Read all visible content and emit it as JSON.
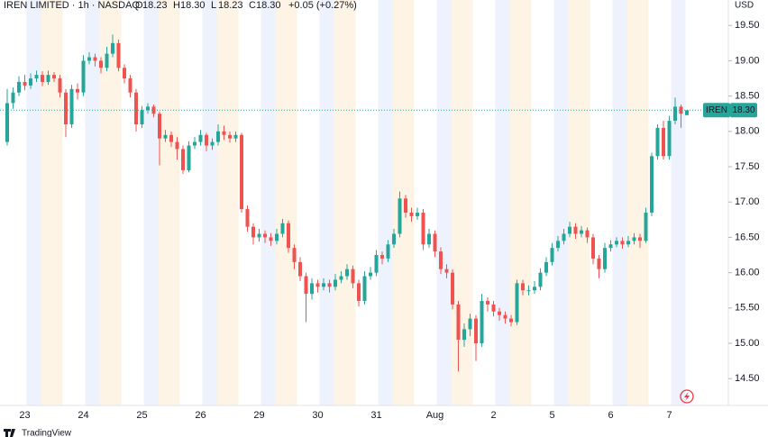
{
  "chart_data": {
    "type": "candlestick",
    "header": {
      "symbol": "IREN LIMITED · 1h · NASDAQ",
      "ohlc_labels": [
        "O",
        "H",
        "L",
        "C"
      ],
      "ohlc_values": [
        "18.23",
        "18.30",
        "18.23",
        "18.30"
      ],
      "change": "+0.05 (+0.27%)"
    },
    "currency": "USD",
    "symbol_tag": "IREN",
    "last_price": {
      "value": 18.3,
      "label": "18.30"
    },
    "brand": "TradingView",
    "up_color": "#26a69a",
    "down_color": "#ef5350",
    "ylim": [
      14.12,
      19.86
    ],
    "yticks": [
      {
        "value": 14.5,
        "label": "14.50"
      },
      {
        "value": 15,
        "label": "15.00"
      },
      {
        "value": 15.5,
        "label": "15.50"
      },
      {
        "value": 16,
        "label": "16.00"
      },
      {
        "value": 16.5,
        "label": "16.50"
      },
      {
        "value": 17,
        "label": "17.00"
      },
      {
        "value": 17.5,
        "label": "17.50"
      },
      {
        "value": 18,
        "label": "18.00"
      },
      {
        "value": 18.5,
        "label": "18.50"
      },
      {
        "value": 19,
        "label": "19.00"
      },
      {
        "value": 19.5,
        "label": "19.50"
      }
    ],
    "categories": [
      null,
      null,
      null,
      "23",
      null,
      null,
      null,
      null,
      null,
      null,
      null,
      null,
      null,
      "24",
      null,
      null,
      null,
      null,
      null,
      null,
      null,
      null,
      null,
      "25",
      null,
      null,
      null,
      null,
      null,
      null,
      null,
      null,
      null,
      "26",
      null,
      null,
      null,
      null,
      null,
      null,
      null,
      null,
      null,
      "29",
      null,
      null,
      null,
      null,
      null,
      null,
      null,
      null,
      null,
      "30",
      null,
      null,
      null,
      null,
      null,
      null,
      null,
      null,
      null,
      "31",
      null,
      null,
      null,
      null,
      null,
      null,
      null,
      null,
      null,
      "Aug",
      null,
      null,
      null,
      null,
      null,
      null,
      null,
      null,
      null,
      "2",
      null,
      null,
      null,
      null,
      null,
      null,
      null,
      null,
      null,
      "5",
      null,
      null,
      null,
      null,
      null,
      null,
      null,
      null,
      null,
      "6",
      null,
      null,
      null,
      null,
      null,
      null,
      null,
      null,
      null,
      "7",
      null,
      null,
      null
    ],
    "open": [
      17.85,
      18.4,
      18.55,
      18.7,
      18.65,
      18.75,
      18.8,
      18.7,
      18.8,
      18.75,
      18.55,
      18.1,
      18.6,
      18.55,
      19.0,
      19.05,
      19.0,
      18.9,
      19.1,
      19.25,
      18.9,
      18.75,
      18.55,
      18.1,
      18.3,
      18.35,
      18.25,
      17.9,
      17.95,
      17.85,
      17.75,
      17.45,
      17.8,
      17.85,
      17.95,
      17.8,
      17.85,
      18.0,
      17.95,
      17.9,
      17.95,
      16.9,
      16.65,
      16.5,
      16.55,
      16.5,
      16.45,
      16.55,
      16.7,
      16.35,
      16.15,
      15.95,
      15.7,
      15.85,
      15.8,
      15.85,
      15.8,
      15.9,
      15.95,
      16.05,
      15.85,
      15.6,
      15.95,
      16.0,
      16.25,
      16.2,
      16.4,
      16.55,
      17.05,
      16.85,
      16.8,
      16.85,
      16.4,
      16.55,
      16.3,
      16.05,
      16.0,
      15.55,
      15.05,
      15.2,
      15.35,
      15.0,
      15.6,
      15.55,
      15.45,
      15.4,
      15.35,
      15.3,
      15.85,
      15.75,
      15.75,
      15.8,
      16.0,
      16.15,
      16.35,
      16.45,
      16.55,
      16.65,
      16.55,
      16.6,
      16.5,
      16.2,
      16.05,
      16.35,
      16.4,
      16.45,
      16.4,
      16.45,
      16.5,
      16.45,
      16.85,
      17.65,
      18.05,
      17.65,
      18.15,
      18.35,
      18.23
    ],
    "high": [
      18.6,
      18.62,
      18.78,
      18.8,
      18.82,
      18.86,
      18.85,
      18.86,
      18.84,
      18.8,
      18.6,
      18.66,
      18.68,
      19.08,
      19.12,
      19.1,
      19.05,
      19.2,
      19.37,
      19.3,
      18.95,
      18.8,
      18.6,
      18.36,
      18.4,
      18.38,
      18.28,
      18.02,
      18.0,
      17.92,
      17.8,
      17.86,
      17.92,
      18.02,
      17.98,
      17.9,
      18.1,
      18.08,
      18.0,
      18.0,
      17.98,
      16.95,
      16.7,
      16.62,
      16.6,
      16.56,
      16.62,
      16.76,
      16.74,
      16.4,
      16.22,
      16.0,
      15.92,
      15.9,
      15.92,
      15.9,
      15.98,
      16.02,
      16.12,
      16.1,
      15.9,
      16.02,
      16.08,
      16.32,
      16.3,
      16.46,
      16.62,
      17.15,
      17.1,
      16.92,
      16.92,
      16.9,
      16.62,
      16.6,
      16.36,
      16.12,
      16.05,
      15.6,
      15.28,
      15.42,
      15.4,
      15.7,
      15.65,
      15.6,
      15.5,
      15.45,
      15.4,
      15.9,
      15.9,
      15.82,
      15.88,
      16.06,
      16.22,
      16.42,
      16.52,
      16.62,
      16.72,
      16.7,
      16.66,
      16.64,
      16.55,
      16.25,
      16.42,
      16.46,
      16.5,
      16.5,
      16.52,
      16.56,
      16.55,
      16.92,
      17.7,
      18.1,
      18.15,
      18.22,
      18.48,
      18.38,
      18.3
    ],
    "low": [
      17.8,
      18.32,
      18.5,
      18.58,
      18.6,
      18.7,
      18.64,
      18.66,
      18.7,
      18.48,
      17.92,
      18.05,
      18.45,
      18.5,
      18.95,
      18.92,
      18.82,
      18.85,
      19.05,
      18.85,
      18.68,
      18.48,
      18.0,
      18.05,
      18.25,
      18.2,
      17.52,
      17.85,
      17.78,
      17.6,
      17.4,
      17.42,
      17.75,
      17.8,
      17.72,
      17.74,
      17.8,
      17.88,
      17.84,
      17.85,
      16.85,
      16.58,
      16.4,
      16.44,
      16.42,
      16.38,
      16.4,
      16.5,
      16.28,
      16.05,
      15.88,
      15.3,
      15.62,
      15.72,
      15.75,
      15.72,
      15.75,
      15.85,
      15.9,
      15.78,
      15.52,
      15.55,
      15.9,
      15.95,
      16.12,
      16.15,
      16.35,
      16.5,
      16.78,
      16.72,
      16.75,
      16.32,
      16.35,
      16.22,
      15.98,
      15.92,
      15.48,
      14.6,
      14.95,
      15.1,
      14.75,
      14.95,
      15.45,
      15.38,
      15.32,
      15.28,
      15.24,
      15.26,
      15.68,
      15.68,
      15.7,
      15.75,
      15.95,
      16.1,
      16.3,
      16.4,
      16.5,
      16.48,
      16.5,
      16.42,
      16.12,
      15.92,
      16.0,
      16.3,
      16.36,
      16.34,
      16.36,
      16.4,
      16.35,
      16.42,
      16.8,
      17.6,
      17.6,
      17.6,
      18.1,
      18.05,
      18.23
    ],
    "close": [
      18.4,
      18.55,
      18.7,
      18.65,
      18.75,
      18.8,
      18.7,
      18.8,
      18.75,
      18.55,
      18.1,
      18.6,
      18.55,
      19.0,
      19.05,
      19.0,
      18.9,
      19.1,
      19.25,
      18.9,
      18.75,
      18.55,
      18.1,
      18.3,
      18.35,
      18.25,
      17.9,
      17.95,
      17.85,
      17.75,
      17.45,
      17.8,
      17.85,
      17.95,
      17.8,
      17.85,
      18.0,
      17.95,
      17.9,
      17.95,
      16.9,
      16.65,
      16.5,
      16.55,
      16.5,
      16.45,
      16.55,
      16.7,
      16.35,
      16.15,
      15.95,
      15.7,
      15.85,
      15.8,
      15.85,
      15.8,
      15.9,
      15.95,
      16.05,
      15.85,
      15.6,
      15.95,
      16.0,
      16.25,
      16.2,
      16.4,
      16.55,
      17.05,
      16.85,
      16.8,
      16.85,
      16.4,
      16.55,
      16.3,
      16.05,
      16.0,
      15.55,
      15.05,
      15.2,
      15.35,
      15.0,
      15.6,
      15.55,
      15.45,
      15.4,
      15.35,
      15.3,
      15.85,
      15.75,
      15.75,
      15.8,
      16.0,
      16.15,
      16.35,
      16.45,
      16.55,
      16.65,
      16.55,
      16.6,
      16.5,
      16.2,
      16.05,
      16.35,
      16.4,
      16.45,
      16.4,
      16.45,
      16.5,
      16.45,
      16.85,
      17.65,
      18.05,
      17.65,
      18.15,
      18.35,
      18.25,
      18.3
    ]
  }
}
